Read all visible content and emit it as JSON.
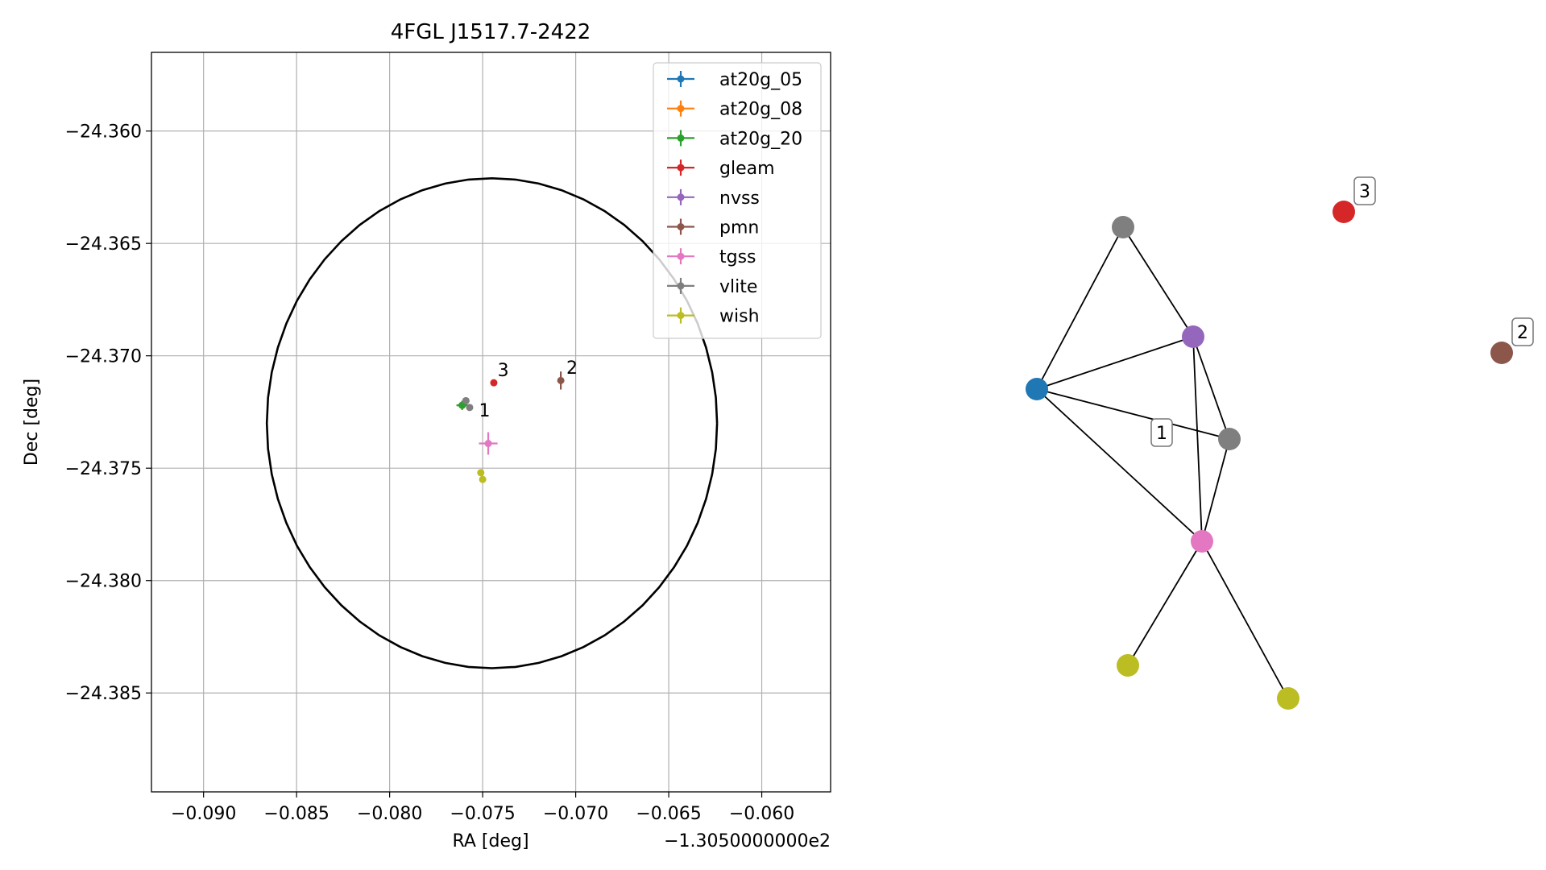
{
  "chart_data": [
    {
      "type": "scatter",
      "title": "4FGL J1517.7-2422",
      "xlabel": "RA [deg]",
      "ylabel": "Dec [deg]",
      "x_offset_label": "−1.3050000000e2",
      "xlim": [
        -0.0928,
        -0.0563
      ],
      "ylim": [
        -24.3894,
        -24.3565
      ],
      "xticks": [
        -0.09,
        -0.085,
        -0.08,
        -0.075,
        -0.07,
        -0.065,
        -0.06
      ],
      "xtick_labels": [
        "−0.090",
        "−0.085",
        "−0.080",
        "−0.075",
        "−0.070",
        "−0.065",
        "−0.060"
      ],
      "yticks": [
        -24.36,
        -24.365,
        -24.37,
        -24.375,
        -24.38,
        -24.385
      ],
      "ytick_labels": [
        "−24.360",
        "−24.365",
        "−24.370",
        "−24.375",
        "−24.380",
        "−24.385"
      ],
      "grid": true,
      "legend_position": "top-right",
      "ellipse": {
        "center_x": -0.0745,
        "center_y": -24.373,
        "radius_x": 0.0121,
        "radius_y": 0.0109,
        "color": "#000000"
      },
      "series": [
        {
          "name": "at20g_05",
          "color": "#1f77b4",
          "points": [
            {
              "x": -0.0761,
              "y": -24.3722,
              "xerr": 0.0003,
              "yerr": 0.0002
            }
          ]
        },
        {
          "name": "at20g_08",
          "color": "#ff7f0e",
          "points": [
            {
              "x": -0.0761,
              "y": -24.3722,
              "xerr": 0.0003,
              "yerr": 0.0002
            }
          ]
        },
        {
          "name": "at20g_20",
          "color": "#2ca02c",
          "points": [
            {
              "x": -0.0761,
              "y": -24.3722,
              "xerr": 0.0003,
              "yerr": 0.0002
            }
          ]
        },
        {
          "name": "gleam",
          "color": "#d62728",
          "points": [
            {
              "x": -0.0744,
              "y": -24.3712,
              "xerr": 0.0001,
              "yerr": 0.0001
            }
          ]
        },
        {
          "name": "nvss",
          "color": "#9467bd",
          "points": [
            {
              "x": -0.0759,
              "y": -24.372,
              "xerr": 0.0001,
              "yerr": 0.0001
            }
          ]
        },
        {
          "name": "pmn",
          "color": "#8c564b",
          "points": [
            {
              "x": -0.0708,
              "y": -24.3711,
              "xerr": 0.0001,
              "yerr": 0.0004
            }
          ]
        },
        {
          "name": "tgss",
          "color": "#e377c2",
          "points": [
            {
              "x": -0.0747,
              "y": -24.3739,
              "xerr": 0.0005,
              "yerr": 0.0005
            }
          ]
        },
        {
          "name": "vlite",
          "color": "#7f7f7f",
          "points": [
            {
              "x": -0.0759,
              "y": -24.372,
              "xerr": 0.0001,
              "yerr": 0.0001
            },
            {
              "x": -0.0757,
              "y": -24.3723,
              "xerr": 0.0001,
              "yerr": 0.0001
            }
          ]
        },
        {
          "name": "wish",
          "color": "#bcbd22",
          "points": [
            {
              "x": -0.0751,
              "y": -24.3752,
              "xerr": 0.0001,
              "yerr": 0.0001
            },
            {
              "x": -0.075,
              "y": -24.3755,
              "xerr": 0.0001,
              "yerr": 0.0001
            }
          ]
        }
      ],
      "annotations": [
        {
          "text": "1",
          "x": -0.0752,
          "y": -24.3727
        },
        {
          "text": "2",
          "x": -0.0705,
          "y": -24.3708
        },
        {
          "text": "3",
          "x": -0.0742,
          "y": -24.3709
        }
      ]
    },
    {
      "type": "network",
      "nodes": [
        {
          "id": "gray_top",
          "color": "#7f7f7f",
          "label": ""
        },
        {
          "id": "purple",
          "color": "#9467bd",
          "label": ""
        },
        {
          "id": "blue",
          "color": "#1f77b4",
          "label": ""
        },
        {
          "id": "gray_mid",
          "color": "#7f7f7f",
          "label": ""
        },
        {
          "id": "pink",
          "color": "#e377c2",
          "label": ""
        },
        {
          "id": "olive_left",
          "color": "#bcbd22",
          "label": ""
        },
        {
          "id": "olive_right",
          "color": "#bcbd22",
          "label": ""
        },
        {
          "id": "red",
          "color": "#d62728",
          "label": "3"
        },
        {
          "id": "brown",
          "color": "#8c564b",
          "label": "2"
        }
      ],
      "edges": [
        [
          "gray_top",
          "blue"
        ],
        [
          "gray_top",
          "purple"
        ],
        [
          "blue",
          "purple"
        ],
        [
          "blue",
          "gray_mid"
        ],
        [
          "blue",
          "pink"
        ],
        [
          "purple",
          "pink"
        ],
        [
          "purple",
          "gray_mid"
        ],
        [
          "gray_mid",
          "pink"
        ],
        [
          "pink",
          "olive_left"
        ],
        [
          "pink",
          "olive_right"
        ]
      ],
      "cluster_labels": [
        {
          "text": "1"
        }
      ]
    }
  ]
}
